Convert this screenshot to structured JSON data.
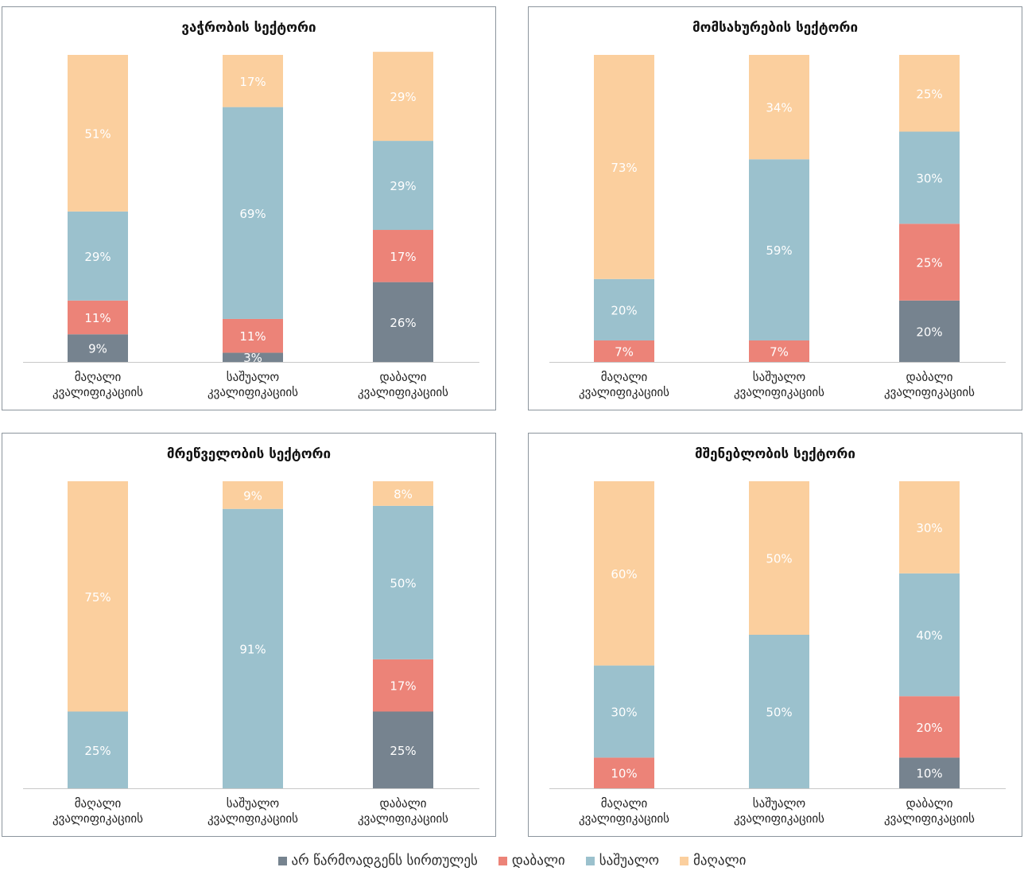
{
  "legend": [
    {
      "name": "არ წარმოადგენს სირთულეს",
      "color": "#76838f"
    },
    {
      "name": "დაბალი",
      "color": "#ec8378"
    },
    {
      "name": "საშუალო",
      "color": "#9bc1cd"
    },
    {
      "name": "მაღალი",
      "color": "#fbcf9e"
    }
  ],
  "chart_data": [
    {
      "type": "bar",
      "stacked": true,
      "title": "ვაჭრობის სექტორი",
      "categories": [
        "მაღალი კვალიფიკაციის",
        "საშუალო კვალიფიკაციის",
        "დაბალი კვალიფიკაციის"
      ],
      "series": [
        {
          "name": "არ წარმოადგენს სირთულეს",
          "values": [
            9,
            3,
            26
          ]
        },
        {
          "name": "დაბალი",
          "values": [
            11,
            11,
            17
          ]
        },
        {
          "name": "საშუალო",
          "values": [
            29,
            69,
            29
          ]
        },
        {
          "name": "მაღალი",
          "values": [
            51,
            17,
            29
          ]
        }
      ],
      "ylim": [
        0,
        100
      ]
    },
    {
      "type": "bar",
      "stacked": true,
      "title": "მომსახურების სექტორი",
      "categories": [
        "მაღალი კვალიფიკაციის",
        "საშუალო კვალიფიკაციის",
        "დაბალი კვალიფიკაციის"
      ],
      "series": [
        {
          "name": "არ წარმოადგენს სირთულეს",
          "values": [
            0,
            0,
            20
          ]
        },
        {
          "name": "დაბალი",
          "values": [
            7,
            7,
            25
          ]
        },
        {
          "name": "საშუალო",
          "values": [
            20,
            59,
            30
          ]
        },
        {
          "name": "მაღალი",
          "values": [
            73,
            34,
            25
          ]
        }
      ],
      "ylim": [
        0,
        100
      ]
    },
    {
      "type": "bar",
      "stacked": true,
      "title": "მრეწველობის სექტორი",
      "categories": [
        "მაღალი კვალიფიკაციის",
        "საშუალო კვალიფიკაციის",
        "დაბალი კვალიფიკაციის"
      ],
      "series": [
        {
          "name": "არ წარმოადგენს სირთულეს",
          "values": [
            0,
            0,
            25
          ]
        },
        {
          "name": "დაბალი",
          "values": [
            0,
            0,
            17
          ]
        },
        {
          "name": "საშუალო",
          "values": [
            25,
            91,
            50
          ]
        },
        {
          "name": "მაღალი",
          "values": [
            75,
            9,
            8
          ]
        }
      ],
      "ylim": [
        0,
        100
      ]
    },
    {
      "type": "bar",
      "stacked": true,
      "title": "მშენებლობის სექტორი",
      "categories": [
        "მაღალი კვალიფიკაციის",
        "საშუალო კვალიფიკაციის",
        "დაბალი კვალიფიკაციის"
      ],
      "series": [
        {
          "name": "არ წარმოადგენს სირთულეს",
          "values": [
            0,
            0,
            10
          ]
        },
        {
          "name": "დაბალი",
          "values": [
            10,
            0,
            20
          ]
        },
        {
          "name": "საშუალო",
          "values": [
            30,
            50,
            40
          ]
        },
        {
          "name": "მაღალი",
          "values": [
            60,
            50,
            30
          ]
        }
      ],
      "ylim": [
        0,
        100
      ]
    }
  ]
}
